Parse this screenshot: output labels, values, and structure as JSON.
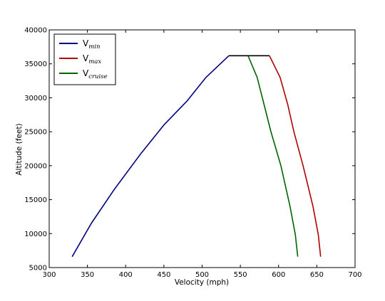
{
  "chart_data": {
    "type": "line",
    "title": "",
    "xlabel": "Velocity (mph)",
    "ylabel": "Altitude (feet)",
    "xlim": [
      300,
      700
    ],
    "ylim": [
      5000,
      40000
    ],
    "xticks": [
      "300",
      "350",
      "400",
      "450",
      "500",
      "550",
      "600",
      "650",
      "700"
    ],
    "yticks": [
      "5000",
      "10000",
      "15000",
      "20000",
      "25000",
      "30000",
      "35000",
      "40000"
    ],
    "grid": false,
    "legend": "top-left",
    "series": [
      {
        "name": "V",
        "subscript": "min",
        "color": "#000080",
        "points": [
          [
            330,
            6600
          ],
          [
            355,
            11500
          ],
          [
            385,
            16500
          ],
          [
            420,
            21800
          ],
          [
            450,
            26000
          ],
          [
            480,
            29500
          ],
          [
            505,
            33000
          ],
          [
            535,
            36200
          ]
        ]
      },
      {
        "name": "V",
        "subscript": "max",
        "color": "#b00000",
        "points": [
          [
            655,
            6600
          ],
          [
            652,
            9800
          ],
          [
            645,
            14000
          ],
          [
            632,
            20000
          ],
          [
            620,
            25000
          ],
          [
            612,
            29000
          ],
          [
            602,
            33000
          ],
          [
            588,
            36200
          ]
        ]
      },
      {
        "name": "V",
        "subscript": "cruise",
        "color": "#006400",
        "points": [
          [
            625,
            6600
          ],
          [
            622,
            9800
          ],
          [
            615,
            14000
          ],
          [
            603,
            20000
          ],
          [
            590,
            25000
          ],
          [
            581,
            29000
          ],
          [
            572,
            33000
          ],
          [
            560,
            36200
          ]
        ]
      },
      {
        "name": "",
        "color": "#000000",
        "points": [
          [
            535,
            36200
          ],
          [
            588,
            36200
          ]
        ]
      }
    ]
  }
}
